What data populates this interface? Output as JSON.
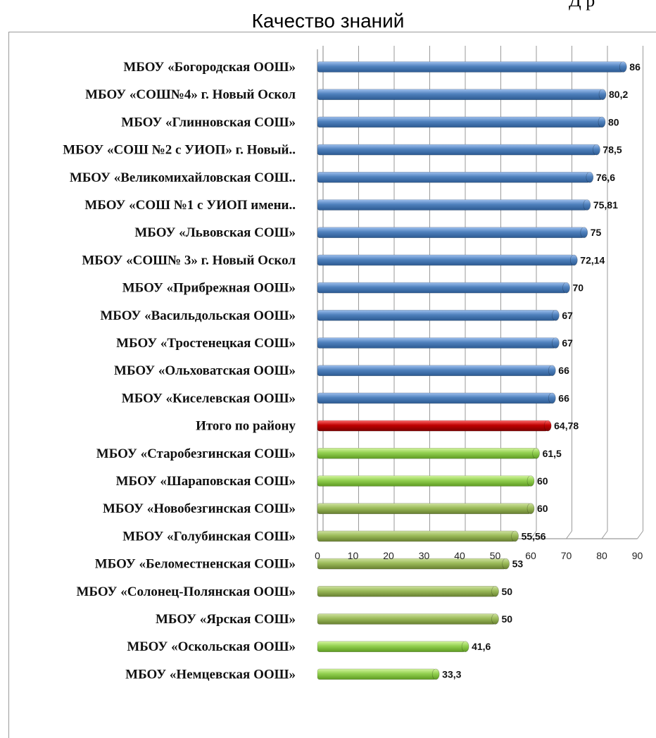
{
  "header": {
    "fragment": "Д р",
    "title": "Качество знаний"
  },
  "colors": {
    "blue": "#4f81bd",
    "red": "#c00000",
    "green_light": "#92d050",
    "green_olive": "#9bbb59",
    "grid": "#9a9a9a"
  },
  "chart_data": {
    "type": "bar",
    "orientation": "horizontal",
    "title": "Качество знаний",
    "xlim": [
      0,
      90
    ],
    "ticks": [
      0,
      10,
      20,
      30,
      40,
      50,
      60,
      70,
      80,
      90
    ],
    "grid": true,
    "categories": [
      "МБОУ «Богородская ООШ»",
      "МБОУ «СОШ№4» г. Новый Оскол",
      "МБОУ «Глинновская СОШ»",
      "МБОУ «СОШ №2 с УИОП» г. Новый..",
      "МБОУ «Великомихайловская СОШ..",
      "МБОУ «СОШ №1 с УИОП имени..",
      "МБОУ «Львовская СОШ»",
      "МБОУ «СОШ№ 3» г. Новый Оскол",
      "МБОУ «Прибрежная ООШ»",
      "МБОУ «Васильдольская ООШ»",
      "МБОУ «Тростенецкая СОШ»",
      "МБОУ «Ольховатская ООШ»",
      "МБОУ «Киселевская ООШ»",
      "Итого по району",
      "МБОУ «Старобезгинская СОШ»",
      "МБОУ «Шараповская СОШ»",
      "МБОУ «Новобезгинская СОШ»",
      "МБОУ «Голубинская СОШ»",
      "МБОУ «Беломестненская СОШ»",
      "МБОУ «Солонец-Полянская ООШ»",
      "МБОУ «Ярская СОШ»",
      "МБОУ «Оскольская ООШ»",
      "МБОУ «Немцевская ООШ»"
    ],
    "values": [
      86,
      80.2,
      80,
      78.5,
      76.6,
      75.81,
      75,
      72.14,
      70,
      67,
      67,
      66,
      66,
      64.78,
      61.5,
      60,
      60,
      55.56,
      53,
      50,
      50,
      41.6,
      33.3
    ],
    "value_labels": [
      "86",
      "80,2",
      "80",
      "78,5",
      "76,6",
      "75,81",
      "75",
      "72,14",
      "70",
      "67",
      "67",
      "66",
      "66",
      "64,78",
      "61,5",
      "60",
      "60",
      "55,56",
      "53",
      "50",
      "50",
      "41,6",
      "33,3"
    ],
    "bar_colors": [
      "blue",
      "blue",
      "blue",
      "blue",
      "blue",
      "blue",
      "blue",
      "blue",
      "blue",
      "blue",
      "blue",
      "blue",
      "blue",
      "red",
      "green_light",
      "green_light",
      "green_olive",
      "green_olive",
      "green_olive",
      "green_olive",
      "green_olive",
      "green_light",
      "green_light"
    ]
  }
}
